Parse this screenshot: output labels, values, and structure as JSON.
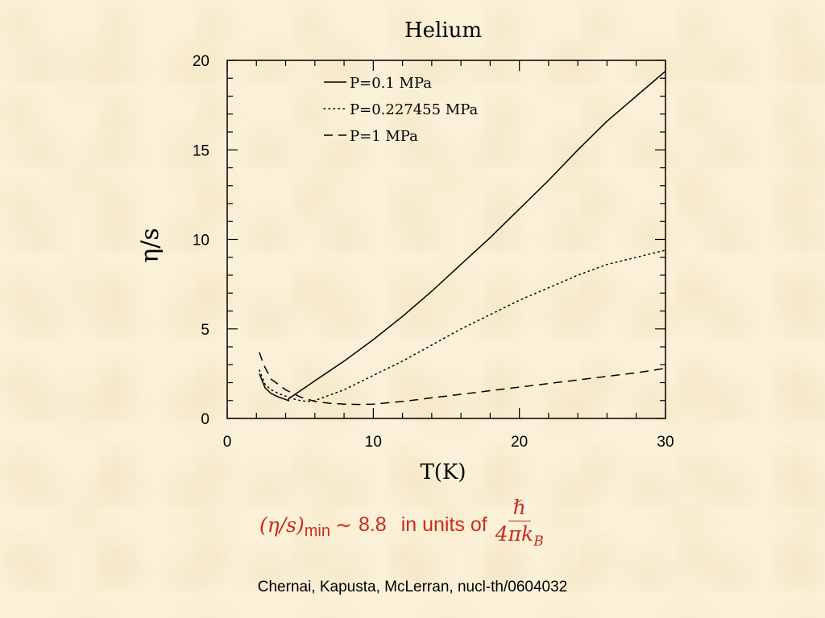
{
  "chart_data": {
    "type": "line",
    "title": "Helium",
    "xlabel": "T(K)",
    "ylabel": "η/s",
    "xlim": [
      0,
      30
    ],
    "ylim": [
      0,
      20
    ],
    "xticks": [
      0,
      10,
      20,
      30
    ],
    "yticks": [
      0,
      5,
      10,
      15,
      20
    ],
    "grid": false,
    "legend_position": "top-center",
    "series": [
      {
        "name": "P=0.1 MPa",
        "style": "solid",
        "x": [
          2.2,
          2.6,
          3.0,
          3.5,
          4.2,
          4.2,
          6,
          8,
          10,
          12,
          14,
          16,
          18,
          20,
          22,
          24,
          26,
          28,
          30
        ],
        "y": [
          2.5,
          1.7,
          1.4,
          1.2,
          1.0,
          1.1,
          2.1,
          3.2,
          4.4,
          5.7,
          7.1,
          8.6,
          10.1,
          11.7,
          13.3,
          15.0,
          16.6,
          18.0,
          19.4
        ]
      },
      {
        "name": "P=0.227455 MPa",
        "style": "dotted",
        "x": [
          2.2,
          2.6,
          3.0,
          3.5,
          4.0,
          4.5,
          5.0,
          5.5,
          6,
          8,
          10,
          12,
          14,
          16,
          18,
          20,
          22,
          24,
          26,
          28,
          30
        ],
        "y": [
          2.7,
          1.9,
          1.6,
          1.4,
          1.25,
          1.1,
          1.0,
          0.95,
          1.0,
          1.6,
          2.4,
          3.2,
          4.1,
          5.0,
          5.8,
          6.6,
          7.3,
          8.0,
          8.6,
          9.0,
          9.4
        ]
      },
      {
        "name": "P=1 MPa",
        "style": "dashed",
        "x": [
          2.2,
          2.5,
          3.0,
          3.5,
          4.0,
          5.0,
          6,
          7,
          8,
          9,
          10,
          12,
          14,
          16,
          18,
          20,
          22,
          24,
          26,
          28,
          30
        ],
        "y": [
          3.7,
          3.0,
          2.2,
          1.9,
          1.6,
          1.2,
          0.95,
          0.85,
          0.8,
          0.78,
          0.8,
          0.95,
          1.15,
          1.35,
          1.55,
          1.75,
          1.95,
          2.15,
          2.35,
          2.55,
          2.8
        ]
      }
    ]
  },
  "formula": {
    "lhs": "(η/s)",
    "subscript": "min",
    "approx": "~",
    "value": "8.8",
    "units_text": "in units of",
    "numerator": "ℏ",
    "denominator": "4πk",
    "denominator_sub": "B"
  },
  "citation": "Chernai, Kapusta, McLerran, nucl-th/0604032"
}
